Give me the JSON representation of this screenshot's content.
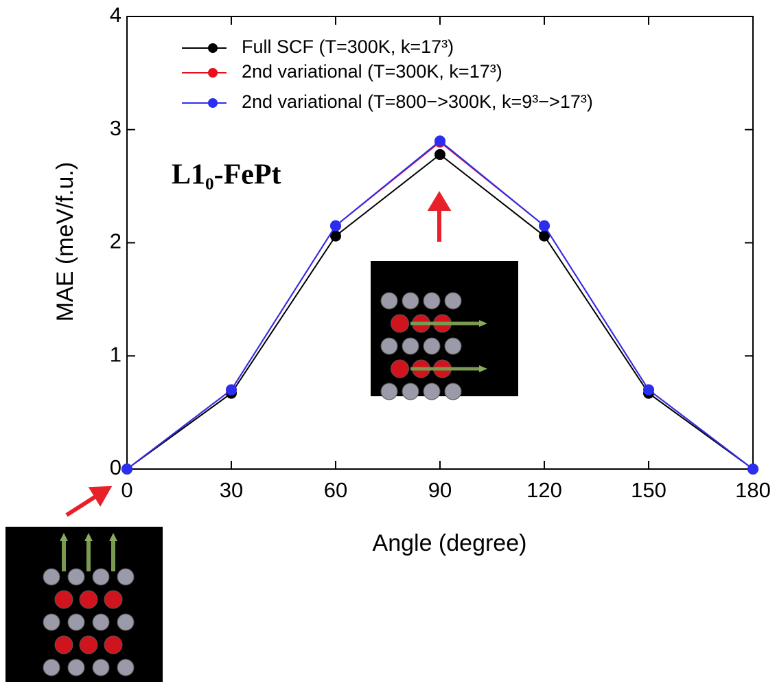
{
  "chart_data": {
    "type": "line",
    "annotation": "L1₀-FePt",
    "x_label": "Angle (degree)",
    "y_label": "MAE (meV/f.u.)",
    "x": [
      0,
      30,
      60,
      90,
      120,
      150,
      180
    ],
    "xlim": [
      0,
      180
    ],
    "xticks": [
      0,
      30,
      60,
      90,
      120,
      150,
      180
    ],
    "ylim": [
      0,
      4
    ],
    "yticks": [
      0,
      1,
      2,
      3,
      4
    ],
    "series": [
      {
        "name": "Full SCF (T=300K, k=17³)",
        "color": "#000000",
        "values": [
          0,
          0.67,
          2.06,
          2.78,
          2.06,
          0.67,
          0
        ]
      },
      {
        "name": "2nd variational (T=300K, k=17³)",
        "color": "#e8101c",
        "values": [
          0,
          0.7,
          2.15,
          2.89,
          2.15,
          0.7,
          0
        ]
      },
      {
        "name": "2nd variational (T=800−>300K, k=9³−>17³)",
        "color": "#2a2ef0",
        "values": [
          0,
          0.7,
          2.15,
          2.9,
          2.15,
          0.7,
          0
        ]
      }
    ]
  }
}
